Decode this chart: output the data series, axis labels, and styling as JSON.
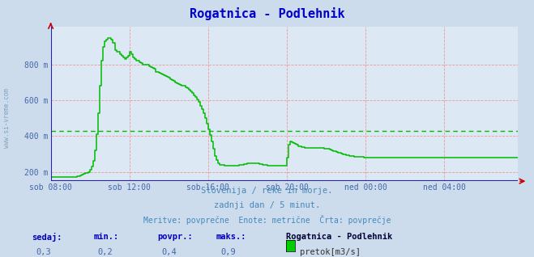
{
  "title": "Rogatnica - Podlehnik",
  "title_color": "#0000cc",
  "bg_color": "#ccdcec",
  "plot_bg_color": "#dce8f4",
  "grid_color": "#ee9999",
  "avg_line_color": "#00bb00",
  "xlabel_color": "#4466aa",
  "ylabel_color": "#4466aa",
  "x_tick_labels": [
    "sob 08:00",
    "sob 12:00",
    "sob 16:00",
    "sob 20:00",
    "ned 00:00",
    "ned 04:00"
  ],
  "x_tick_positions": [
    0,
    48,
    96,
    144,
    192,
    240
  ],
  "y_tick_labels": [
    "200 m",
    "400 m",
    "600 m",
    "800 m"
  ],
  "y_tick_values": [
    200,
    400,
    600,
    800
  ],
  "ylim": [
    148,
    1010
  ],
  "xlim": [
    0,
    285
  ],
  "line_color": "#00bb00",
  "axis_color": "#2222bb",
  "watermark": "www.si-vreme.com",
  "subtitle1": "Slovenija / reke in morje.",
  "subtitle2": "zadnji dan / 5 minut.",
  "subtitle3": "Meritve: povprečne  Enote: metrične  Črta: povprečje",
  "footer_labels": [
    "sedaj:",
    "min.:",
    "povpr.:",
    "maks.:"
  ],
  "footer_values": [
    "0,3",
    "0,2",
    "0,4",
    "0,9"
  ],
  "legend_title": "Rogatnica - Podlehnik",
  "legend_color": "#00cc00",
  "legend_label": "pretok[m3/s]",
  "avg_y": 430,
  "flow_x": [
    0,
    1,
    2,
    3,
    4,
    5,
    6,
    7,
    8,
    9,
    10,
    11,
    12,
    13,
    14,
    15,
    16,
    17,
    18,
    19,
    20,
    21,
    22,
    23,
    24,
    25,
    26,
    27,
    28,
    29,
    30,
    31,
    32,
    33,
    34,
    35,
    36,
    37,
    38,
    39,
    40,
    41,
    42,
    43,
    44,
    45,
    46,
    47,
    48,
    49,
    50,
    51,
    52,
    53,
    54,
    55,
    56,
    57,
    58,
    59,
    60,
    61,
    62,
    63,
    64,
    65,
    66,
    67,
    68,
    69,
    70,
    71,
    72,
    73,
    74,
    75,
    76,
    77,
    78,
    79,
    80,
    81,
    82,
    83,
    84,
    85,
    86,
    87,
    88,
    89,
    90,
    91,
    92,
    93,
    94,
    95,
    96,
    97,
    98,
    99,
    100,
    101,
    102,
    103,
    104,
    105,
    106,
    107,
    108,
    109,
    110,
    111,
    112,
    113,
    114,
    115,
    116,
    117,
    118,
    119,
    120,
    121,
    122,
    123,
    124,
    125,
    126,
    127,
    128,
    129,
    130,
    131,
    132,
    133,
    134,
    135,
    136,
    137,
    138,
    139,
    140,
    141,
    142,
    143,
    144,
    145,
    146,
    147,
    148,
    149,
    150,
    151,
    152,
    153,
    154,
    155,
    156,
    157,
    158,
    159,
    160,
    161,
    162,
    163,
    164,
    165,
    166,
    167,
    168,
    169,
    170,
    171,
    172,
    173,
    174,
    175,
    176,
    177,
    178,
    179,
    180,
    181,
    182,
    183,
    184,
    185,
    186,
    187,
    188,
    189,
    190,
    191,
    192,
    193,
    194,
    195,
    196,
    197,
    198,
    199,
    200,
    201,
    202,
    203,
    204,
    205,
    206,
    207,
    208,
    209,
    210,
    211,
    212,
    213,
    214,
    215,
    216,
    217,
    218,
    219,
    220,
    221,
    222,
    223,
    224,
    225,
    226,
    227,
    228,
    229,
    230,
    231,
    232,
    233,
    234,
    235,
    236,
    237,
    238,
    239,
    240,
    241,
    242,
    243,
    244,
    245,
    246,
    247,
    248,
    249,
    250,
    251,
    252,
    253,
    254,
    255,
    256,
    257,
    258,
    259,
    260,
    261,
    262,
    263,
    264,
    265,
    266,
    267,
    268,
    269,
    270,
    271,
    272,
    273,
    274,
    275,
    276,
    277,
    278,
    279,
    280,
    281,
    282,
    283,
    284,
    285,
    286,
    287,
    288
  ],
  "flow_y": [
    170,
    170,
    170,
    170,
    170,
    170,
    170,
    170,
    170,
    170,
    170,
    170,
    170,
    170,
    170,
    170,
    175,
    178,
    182,
    185,
    190,
    192,
    195,
    200,
    210,
    230,
    260,
    320,
    410,
    530,
    680,
    820,
    900,
    930,
    940,
    950,
    950,
    940,
    920,
    880,
    870,
    870,
    860,
    850,
    840,
    830,
    840,
    850,
    870,
    860,
    840,
    830,
    820,
    820,
    815,
    810,
    800,
    800,
    800,
    800,
    790,
    785,
    780,
    775,
    760,
    758,
    755,
    750,
    745,
    740,
    735,
    730,
    725,
    720,
    715,
    710,
    700,
    695,
    690,
    688,
    684,
    680,
    673,
    667,
    660,
    650,
    640,
    630,
    618,
    605,
    590,
    570,
    550,
    528,
    500,
    470,
    440,
    408,
    370,
    330,
    290,
    265,
    248,
    240,
    238,
    237,
    236,
    235,
    235,
    235,
    235,
    235,
    235,
    235,
    236,
    237,
    238,
    240,
    242,
    244,
    246,
    248,
    250,
    250,
    250,
    248,
    246,
    244,
    242,
    240,
    238,
    237,
    236,
    235,
    235,
    235,
    235,
    235,
    235,
    235,
    235,
    235,
    235,
    235,
    280,
    350,
    370,
    365,
    360,
    355,
    350,
    345,
    342,
    340,
    338,
    336,
    335,
    334,
    334,
    334,
    335,
    335,
    335,
    335,
    335,
    334,
    332,
    330,
    330,
    328,
    325,
    322,
    318,
    314,
    310,
    308,
    305,
    302,
    300,
    298,
    295,
    292,
    290,
    288,
    287,
    286,
    285,
    284,
    284,
    284,
    283,
    282,
    282,
    281,
    281,
    280,
    280,
    279,
    279,
    278,
    278,
    278,
    278,
    278,
    278,
    278,
    278,
    278,
    278,
    278,
    278,
    278,
    278,
    278,
    278,
    278,
    278,
    278,
    278,
    278,
    278,
    278,
    278,
    278,
    278,
    278,
    278,
    278,
    278,
    278,
    278,
    278,
    278,
    278,
    278,
    278,
    278,
    278,
    278,
    278,
    278,
    278,
    278,
    278,
    278,
    278,
    278,
    278,
    278,
    278,
    278,
    278,
    278,
    278,
    278,
    278,
    278,
    278,
    278,
    278,
    278,
    278,
    278,
    278,
    278,
    278,
    278,
    278,
    278,
    278,
    278,
    278,
    278,
    278,
    278,
    278,
    278,
    278,
    278,
    278,
    278,
    278,
    278,
    278,
    278,
    278,
    278,
    278,
    278
  ]
}
